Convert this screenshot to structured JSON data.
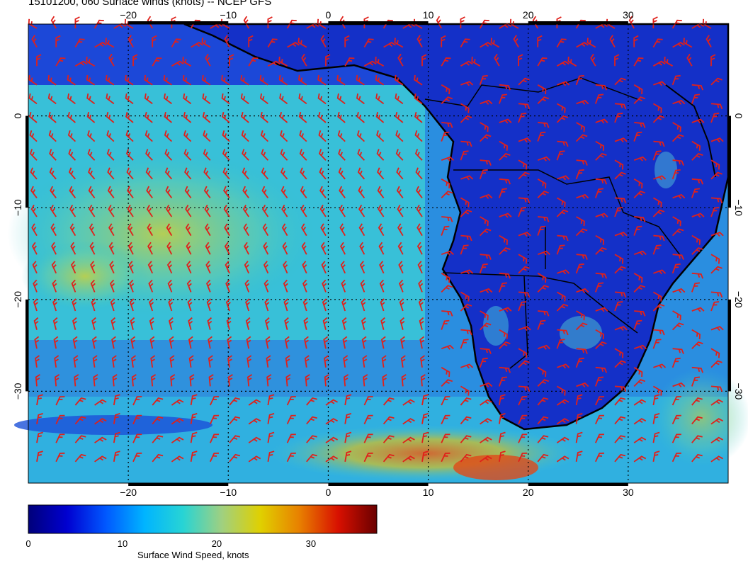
{
  "title": "15101200, 060 Surface winds (knots) -- NCEP GFS",
  "map": {
    "lon_ticks_top": [
      -20,
      -10,
      0,
      10,
      20,
      30
    ],
    "lon_ticks_bottom": [
      -20,
      -10,
      0,
      10,
      20,
      30
    ],
    "lat_ticks_left": [
      0,
      -10,
      -20,
      -30
    ],
    "lat_ticks_right": [
      0,
      -10,
      -20,
      -30
    ],
    "lon_range": [
      -30,
      40
    ],
    "lat_range": [
      -40,
      10
    ],
    "barb_color": "#e0201a",
    "coast_color": "#000000"
  },
  "colorbar": {
    "label": "Surface Wind Speed, knots",
    "ticks": [
      0,
      10,
      20,
      30
    ],
    "range": [
      0,
      37
    ],
    "colors": [
      "#00007a",
      "#0000d0",
      "#0058ff",
      "#00b4ff",
      "#28d4d4",
      "#a0d080",
      "#e0d000",
      "#e88000",
      "#d81000",
      "#6a0000"
    ]
  }
}
